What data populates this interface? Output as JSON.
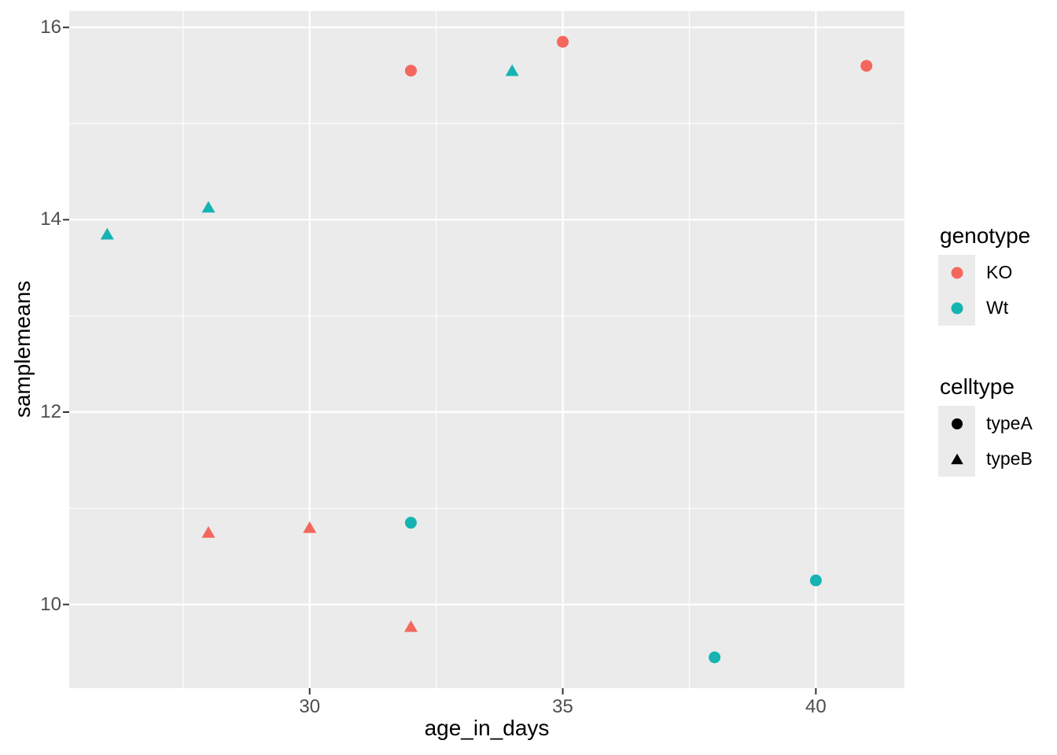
{
  "chart_data": {
    "type": "scatter",
    "title": "",
    "xlabel": "age_in_days",
    "ylabel": "samplemeans",
    "xlim": [
      25.25,
      41.75
    ],
    "ylim": [
      9.13,
      16.17
    ],
    "x_ticks": [
      30,
      35,
      40
    ],
    "x_minor_gridlines": [
      27.5,
      32.5,
      37.5
    ],
    "y_ticks": [
      10,
      12,
      14,
      16
    ],
    "y_minor_gridlines": [
      11,
      13,
      15
    ],
    "grid": "white major and minor gridlines on grey panel",
    "legend_position": "right",
    "panel_bg": "#EBEBEB",
    "gridline_color": "#FFFFFF",
    "tick_mark_color": "#333333",
    "tick_label_color": "#4D4D4D",
    "series": [
      {
        "name": "KO / typeA",
        "genotype": "KO",
        "celltype": "typeA",
        "marker": "circle",
        "color": "#F4675E",
        "points": [
          {
            "x": 32,
            "y": 15.55
          },
          {
            "x": 35,
            "y": 15.85
          },
          {
            "x": 41,
            "y": 15.6
          }
        ]
      },
      {
        "name": "KO / typeB",
        "genotype": "KO",
        "celltype": "typeB",
        "marker": "triangle",
        "color": "#F4675E",
        "points": [
          {
            "x": 28,
            "y": 10.75
          },
          {
            "x": 30,
            "y": 10.8
          },
          {
            "x": 32,
            "y": 9.77
          }
        ]
      },
      {
        "name": "Wt / typeA",
        "genotype": "Wt",
        "celltype": "typeA",
        "marker": "circle",
        "color": "#16B3B3",
        "points": [
          {
            "x": 32,
            "y": 10.85
          },
          {
            "x": 38,
            "y": 9.45
          },
          {
            "x": 40,
            "y": 10.25
          }
        ]
      },
      {
        "name": "Wt / typeB",
        "genotype": "Wt",
        "celltype": "typeB",
        "marker": "triangle",
        "color": "#16B3B3",
        "points": [
          {
            "x": 26,
            "y": 13.85
          },
          {
            "x": 28,
            "y": 14.13
          },
          {
            "x": 34,
            "y": 15.55
          }
        ]
      }
    ]
  },
  "legend": {
    "genotype": {
      "title": "genotype",
      "items": [
        {
          "label": "KO",
          "color": "#F4675E",
          "marker": "circle"
        },
        {
          "label": "Wt",
          "color": "#16B3B3",
          "marker": "circle"
        }
      ]
    },
    "celltype": {
      "title": "celltype",
      "items": [
        {
          "label": "typeA",
          "color": "#000000",
          "marker": "circle"
        },
        {
          "label": "typeB",
          "color": "#000000",
          "marker": "triangle"
        }
      ]
    }
  }
}
